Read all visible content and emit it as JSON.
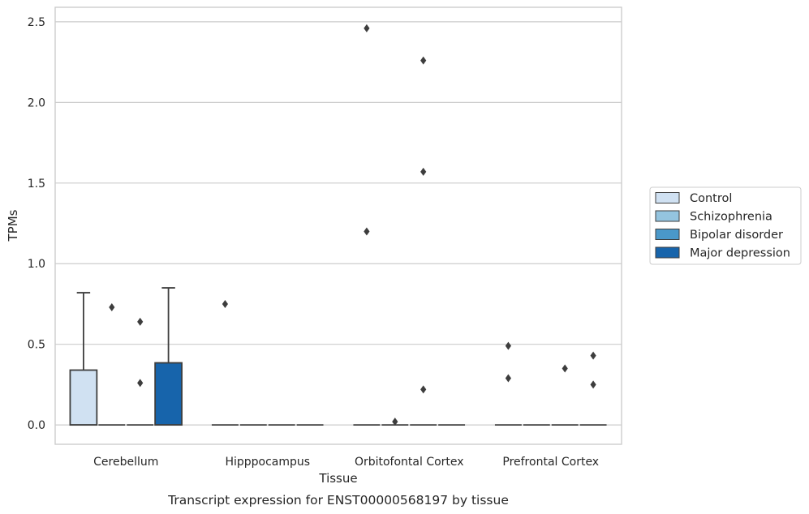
{
  "caption": "Transcript expression for ENST00000568197 by tissue",
  "chart_data": {
    "type": "box",
    "xlabel": "Tissue",
    "ylabel": "TPMs",
    "ylim": [
      -0.12,
      2.59
    ],
    "yticks": [
      0.0,
      0.5,
      1.0,
      1.5,
      2.0,
      2.5
    ],
    "ytick_labels": [
      "0.0",
      "0.5",
      "1.0",
      "1.5",
      "2.0",
      "2.5"
    ],
    "grid": "horizontal",
    "legend_placement": "right",
    "categories": [
      "Cerebellum",
      "Hipppocampus",
      "Orbitofontal Cortex",
      "Prefrontal Cortex"
    ],
    "series": [
      {
        "name": "Control",
        "color": "#d0e1f2",
        "boxes": [
          {
            "min": 0.0,
            "q1": 0.0,
            "median": 0.0,
            "q3": 0.34,
            "max": 0.82,
            "outliers": []
          },
          {
            "min": 0.0,
            "q1": 0.0,
            "median": 0.0,
            "q3": 0.0,
            "max": 0.0,
            "outliers": [
              0.75
            ]
          },
          {
            "min": 0.0,
            "q1": 0.0,
            "median": 0.0,
            "q3": 0.0,
            "max": 0.0,
            "outliers": [
              1.2,
              2.46
            ]
          },
          {
            "min": 0.0,
            "q1": 0.0,
            "median": 0.0,
            "q3": 0.0,
            "max": 0.0,
            "outliers": [
              0.29,
              0.49
            ]
          }
        ]
      },
      {
        "name": "Schizophrenia",
        "color": "#94c4df",
        "boxes": [
          {
            "min": 0.0,
            "q1": 0.0,
            "median": 0.0,
            "q3": 0.0,
            "max": 0.0,
            "outliers": [
              0.73
            ]
          },
          {
            "min": 0.0,
            "q1": 0.0,
            "median": 0.0,
            "q3": 0.0,
            "max": 0.0,
            "outliers": []
          },
          {
            "min": 0.0,
            "q1": 0.0,
            "median": 0.0,
            "q3": 0.0,
            "max": 0.0,
            "outliers": [
              0.02
            ]
          },
          {
            "min": 0.0,
            "q1": 0.0,
            "median": 0.0,
            "q3": 0.0,
            "max": 0.0,
            "outliers": []
          }
        ]
      },
      {
        "name": "Bipolar disorder",
        "color": "#4a98c9",
        "boxes": [
          {
            "min": 0.0,
            "q1": 0.0,
            "median": 0.0,
            "q3": 0.0,
            "max": 0.0,
            "outliers": [
              0.26,
              0.64
            ]
          },
          {
            "min": 0.0,
            "q1": 0.0,
            "median": 0.0,
            "q3": 0.0,
            "max": 0.0,
            "outliers": []
          },
          {
            "min": 0.0,
            "q1": 0.0,
            "median": 0.0,
            "q3": 0.0,
            "max": 0.0,
            "outliers": [
              0.22,
              1.57,
              2.26
            ]
          },
          {
            "min": 0.0,
            "q1": 0.0,
            "median": 0.0,
            "q3": 0.0,
            "max": 0.0,
            "outliers": [
              0.35
            ]
          }
        ]
      },
      {
        "name": "Major depression",
        "color": "#1764ab",
        "boxes": [
          {
            "min": 0.0,
            "q1": 0.0,
            "median": 0.0,
            "q3": 0.385,
            "max": 0.85,
            "outliers": []
          },
          {
            "min": 0.0,
            "q1": 0.0,
            "median": 0.0,
            "q3": 0.0,
            "max": 0.0,
            "outliers": []
          },
          {
            "min": 0.0,
            "q1": 0.0,
            "median": 0.0,
            "q3": 0.0,
            "max": 0.0,
            "outliers": []
          },
          {
            "min": 0.0,
            "q1": 0.0,
            "median": 0.0,
            "q3": 0.0,
            "max": 0.0,
            "outliers": [
              0.25,
              0.43
            ]
          }
        ]
      }
    ]
  }
}
